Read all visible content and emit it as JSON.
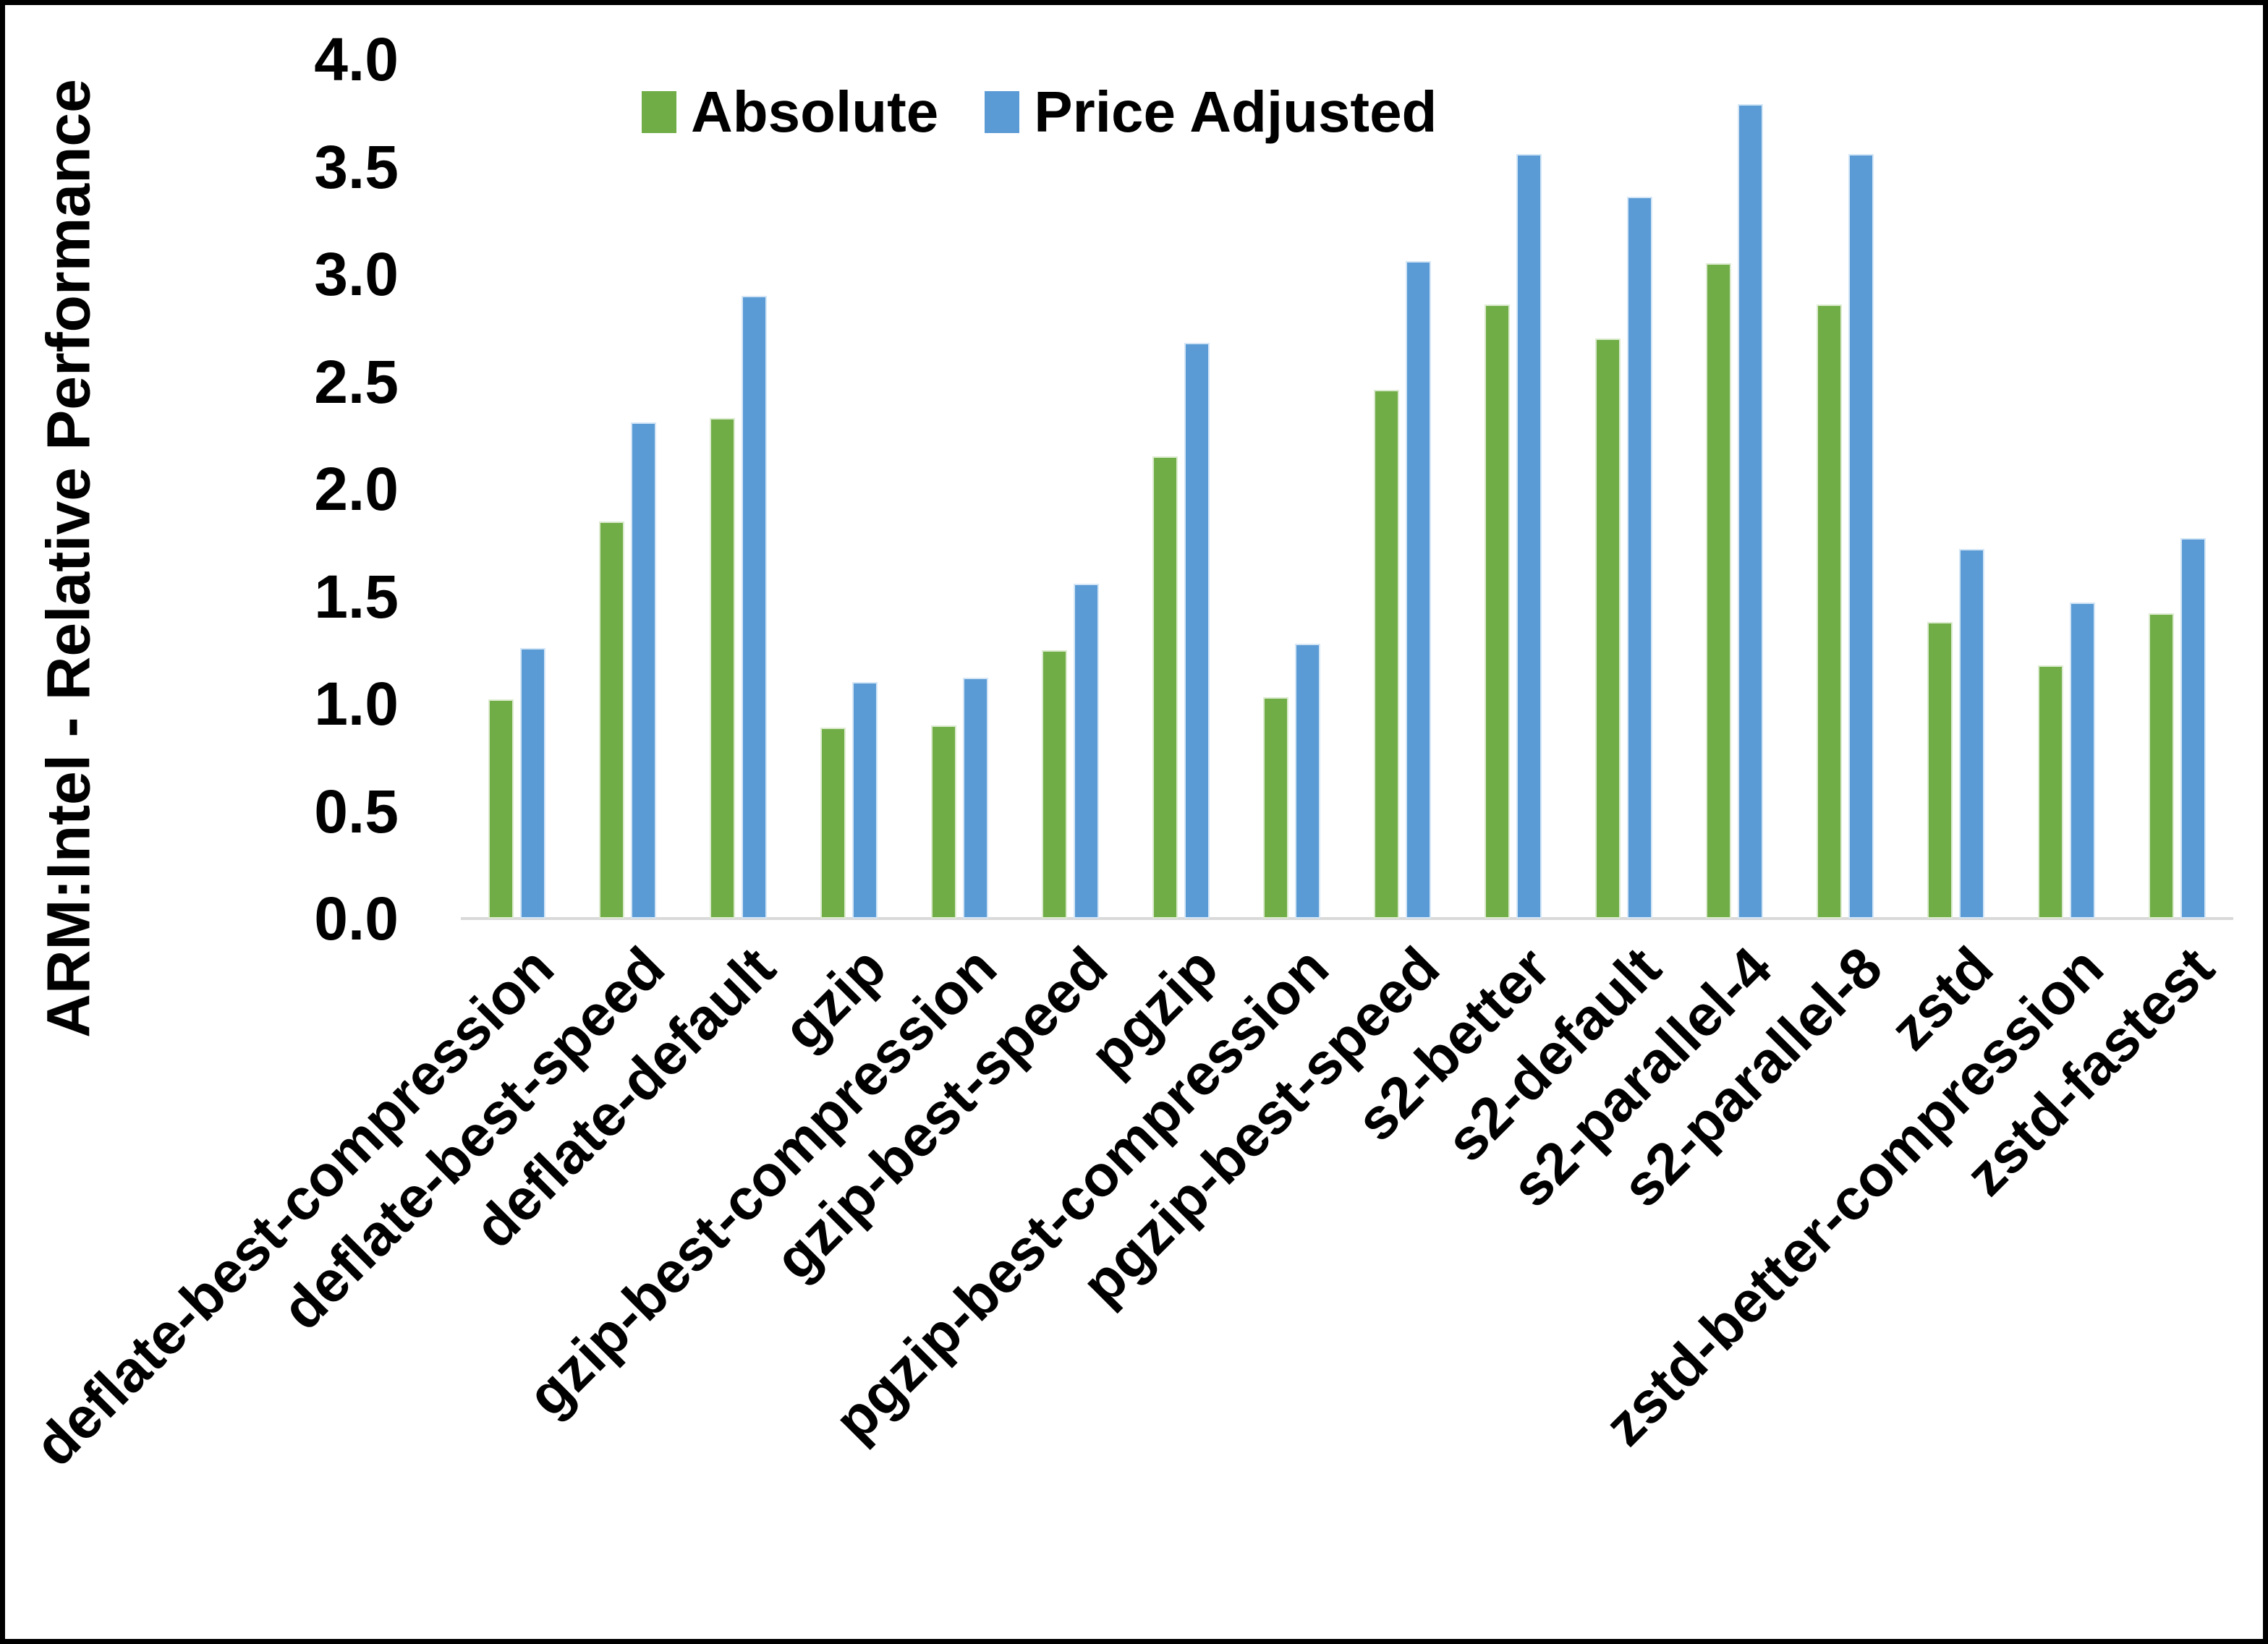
{
  "chart_data": {
    "type": "bar",
    "title": "",
    "ylabel": "ARM:Intel - Relative Performance",
    "ylim": [
      0.0,
      4.0
    ],
    "ytick_step": 0.5,
    "y_tick_labels": [
      "0.0",
      "0.5",
      "1.0",
      "1.5",
      "2.0",
      "2.5",
      "3.0",
      "3.5",
      "4.0"
    ],
    "grid": false,
    "legend_position": "top-center",
    "background_color": "#FFFFFF",
    "axis_line_color": "#D9D9D9",
    "frame_border_color": "#000000",
    "categories": [
      "deflate-best-compression",
      "deflate-best-speed",
      "deflate-default",
      "gzip",
      "gzip-best-compression",
      "gzip-best-speed",
      "pgzip",
      "pgzip-best-compression",
      "pgzip-best-speed",
      "s2-better",
      "s2-default",
      "s2-parallel-4",
      "s2-parallel-8",
      "zstd",
      "zstd-better-compression",
      "zstd-fastest"
    ],
    "series": [
      {
        "name": "Absolute",
        "color": "#70AD47",
        "values": [
          1.02,
          1.85,
          2.33,
          0.89,
          0.9,
          1.25,
          2.15,
          1.03,
          2.46,
          2.86,
          2.7,
          3.05,
          2.86,
          1.38,
          1.18,
          1.42
        ]
      },
      {
        "name": "Price Adjusted",
        "color": "#5B9BD5",
        "values": [
          1.26,
          2.31,
          2.9,
          1.1,
          1.12,
          1.56,
          2.68,
          1.28,
          3.06,
          3.56,
          3.36,
          3.79,
          3.56,
          1.72,
          1.47,
          1.77
        ]
      }
    ]
  }
}
